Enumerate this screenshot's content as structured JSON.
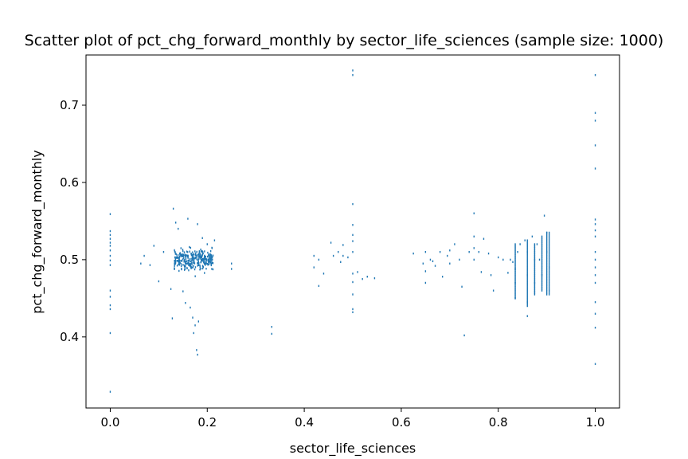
{
  "chart_data": {
    "type": "scatter",
    "title": "Scatter plot of pct_chg_forward_monthly by sector_life_sciences (sample size: 1000)",
    "xlabel": "sector_life_sciences",
    "ylabel": "pct_chg_forward_monthly",
    "xlim": [
      -0.05,
      1.05
    ],
    "ylim": [
      0.308,
      0.765
    ],
    "xticks": [
      0.0,
      0.2,
      0.4,
      0.6,
      0.8,
      1.0
    ],
    "xtick_labels": [
      "0.0",
      "0.2",
      "0.4",
      "0.6",
      "0.8",
      "1.0"
    ],
    "yticks": [
      0.4,
      0.5,
      0.6,
      0.7
    ],
    "ytick_labels": [
      "0.4",
      "0.5",
      "0.6",
      "0.7"
    ],
    "grid": false,
    "marker_color": "#1f77b4",
    "points": [
      [
        0.0,
        0.559
      ],
      [
        0.0,
        0.537
      ],
      [
        0.0,
        0.532
      ],
      [
        0.0,
        0.527
      ],
      [
        0.0,
        0.522
      ],
      [
        0.0,
        0.518
      ],
      [
        0.0,
        0.512
      ],
      [
        0.0,
        0.505
      ],
      [
        0.0,
        0.499
      ],
      [
        0.0,
        0.493
      ],
      [
        0.0,
        0.46
      ],
      [
        0.0,
        0.452
      ],
      [
        0.0,
        0.441
      ],
      [
        0.0,
        0.436
      ],
      [
        0.0,
        0.405
      ],
      [
        0.0,
        0.329
      ],
      [
        0.063,
        0.495
      ],
      [
        0.07,
        0.505
      ],
      [
        0.082,
        0.493
      ],
      [
        0.09,
        0.518
      ],
      [
        0.1,
        0.472
      ],
      [
        0.11,
        0.51
      ],
      [
        0.125,
        0.462
      ],
      [
        0.128,
        0.424
      ],
      [
        0.13,
        0.566
      ],
      [
        0.135,
        0.548
      ],
      [
        0.14,
        0.54
      ],
      [
        0.15,
        0.459
      ],
      [
        0.155,
        0.444
      ],
      [
        0.16,
        0.553
      ],
      [
        0.165,
        0.438
      ],
      [
        0.17,
        0.425
      ],
      [
        0.172,
        0.405
      ],
      [
        0.175,
        0.415
      ],
      [
        0.178,
        0.383
      ],
      [
        0.18,
        0.377
      ],
      [
        0.18,
        0.546
      ],
      [
        0.182,
        0.42
      ],
      [
        0.19,
        0.528
      ],
      [
        0.2,
        0.52
      ],
      [
        0.21,
        0.515
      ],
      [
        0.215,
        0.525
      ],
      [
        0.25,
        0.495
      ],
      [
        0.25,
        0.488
      ],
      [
        0.333,
        0.413
      ],
      [
        0.333,
        0.404
      ],
      [
        0.42,
        0.505
      ],
      [
        0.42,
        0.49
      ],
      [
        0.43,
        0.5
      ],
      [
        0.43,
        0.466
      ],
      [
        0.44,
        0.482
      ],
      [
        0.455,
        0.522
      ],
      [
        0.46,
        0.505
      ],
      [
        0.47,
        0.51
      ],
      [
        0.475,
        0.497
      ],
      [
        0.48,
        0.519
      ],
      [
        0.48,
        0.505
      ],
      [
        0.49,
        0.503
      ],
      [
        0.5,
        0.745
      ],
      [
        0.5,
        0.739
      ],
      [
        0.5,
        0.572
      ],
      [
        0.5,
        0.545
      ],
      [
        0.5,
        0.532
      ],
      [
        0.5,
        0.524
      ],
      [
        0.5,
        0.51
      ],
      [
        0.5,
        0.482
      ],
      [
        0.5,
        0.471
      ],
      [
        0.5,
        0.455
      ],
      [
        0.5,
        0.436
      ],
      [
        0.5,
        0.432
      ],
      [
        0.51,
        0.484
      ],
      [
        0.52,
        0.475
      ],
      [
        0.53,
        0.478
      ],
      [
        0.545,
        0.476
      ],
      [
        0.625,
        0.508
      ],
      [
        0.645,
        0.495
      ],
      [
        0.65,
        0.51
      ],
      [
        0.65,
        0.485
      ],
      [
        0.65,
        0.47
      ],
      [
        0.66,
        0.5
      ],
      [
        0.665,
        0.498
      ],
      [
        0.67,
        0.492
      ],
      [
        0.68,
        0.51
      ],
      [
        0.685,
        0.478
      ],
      [
        0.695,
        0.505
      ],
      [
        0.7,
        0.512
      ],
      [
        0.7,
        0.495
      ],
      [
        0.71,
        0.52
      ],
      [
        0.72,
        0.5
      ],
      [
        0.725,
        0.465
      ],
      [
        0.73,
        0.402
      ],
      [
        0.74,
        0.51
      ],
      [
        0.75,
        0.56
      ],
      [
        0.75,
        0.53
      ],
      [
        0.75,
        0.515
      ],
      [
        0.75,
        0.5
      ],
      [
        0.76,
        0.51
      ],
      [
        0.765,
        0.484
      ],
      [
        0.77,
        0.527
      ],
      [
        0.78,
        0.508
      ],
      [
        0.785,
        0.48
      ],
      [
        0.79,
        0.46
      ],
      [
        0.8,
        0.503
      ],
      [
        0.81,
        0.5
      ],
      [
        0.82,
        0.483
      ],
      [
        0.825,
        0.5
      ],
      [
        0.83,
        0.497
      ],
      [
        0.835,
        0.488
      ],
      [
        0.835,
        0.47
      ],
      [
        0.835,
        0.45
      ],
      [
        0.84,
        0.51
      ],
      [
        0.845,
        0.52
      ],
      [
        0.855,
        0.525
      ],
      [
        0.86,
        0.51
      ],
      [
        0.86,
        0.48
      ],
      [
        0.86,
        0.445
      ],
      [
        0.86,
        0.427
      ],
      [
        0.87,
        0.53
      ],
      [
        0.875,
        0.5
      ],
      [
        0.875,
        0.47
      ],
      [
        0.88,
        0.52
      ],
      [
        0.885,
        0.5
      ],
      [
        0.89,
        0.48
      ],
      [
        0.895,
        0.557
      ],
      [
        0.9,
        0.535
      ],
      [
        0.9,
        0.51
      ],
      [
        0.905,
        0.49
      ],
      [
        0.905,
        0.46
      ],
      [
        1.0,
        0.739
      ],
      [
        1.0,
        0.69
      ],
      [
        1.0,
        0.68
      ],
      [
        1.0,
        0.648
      ],
      [
        1.0,
        0.618
      ],
      [
        1.0,
        0.552
      ],
      [
        1.0,
        0.546
      ],
      [
        1.0,
        0.538
      ],
      [
        1.0,
        0.53
      ],
      [
        1.0,
        0.51
      ],
      [
        1.0,
        0.5
      ],
      [
        1.0,
        0.49
      ],
      [
        1.0,
        0.48
      ],
      [
        1.0,
        0.47
      ],
      [
        1.0,
        0.445
      ],
      [
        1.0,
        0.43
      ],
      [
        1.0,
        0.412
      ],
      [
        1.0,
        0.365
      ]
    ],
    "cluster": {
      "x_center": 0.172,
      "x_spread": 0.04,
      "y_center": 0.5,
      "y_spread": 0.018,
      "count": 320
    },
    "vertical_strips": [
      {
        "x": 0.835,
        "y_min": 0.45,
        "y_max": 0.52
      },
      {
        "x": 0.86,
        "y_min": 0.44,
        "y_max": 0.525
      },
      {
        "x": 0.875,
        "y_min": 0.455,
        "y_max": 0.52
      },
      {
        "x": 0.89,
        "y_min": 0.46,
        "y_max": 0.53
      },
      {
        "x": 0.9,
        "y_min": 0.455,
        "y_max": 0.535
      },
      {
        "x": 0.905,
        "y_min": 0.455,
        "y_max": 0.535
      }
    ]
  }
}
